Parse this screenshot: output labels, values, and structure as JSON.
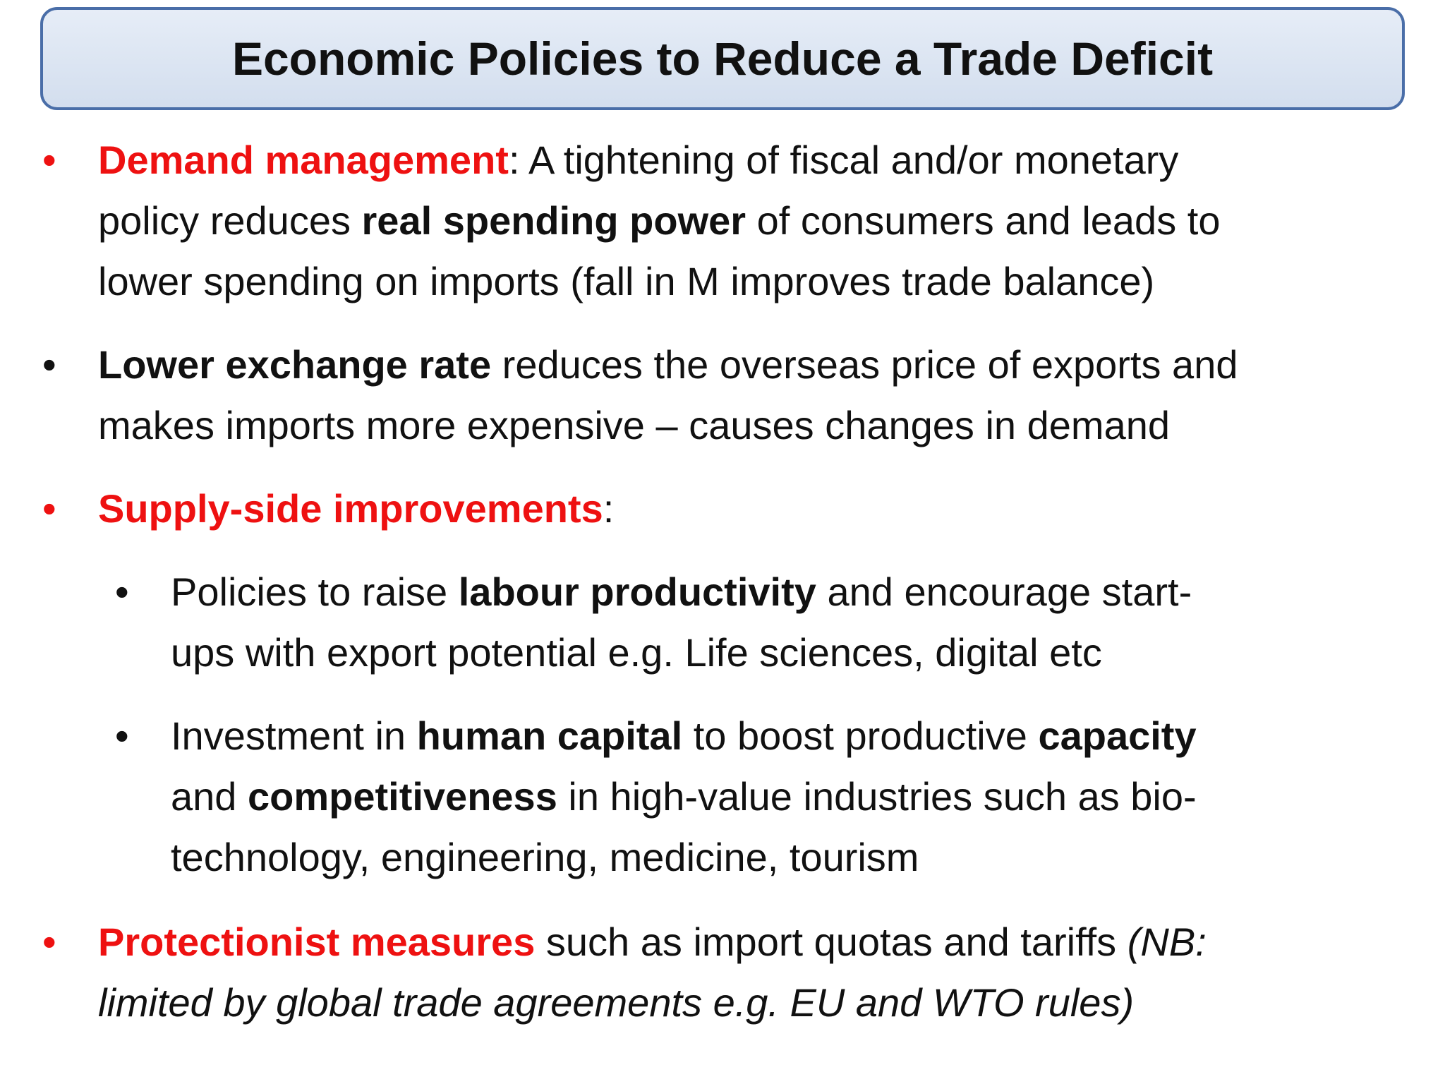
{
  "title": "Economic Policies to Reduce a Trade Deficit",
  "bullet_glyph": "•",
  "colors": {
    "highlight": "#ee1111",
    "title_border": "#4a6ea8",
    "title_fill": "#dbe4f1"
  },
  "b1": {
    "l1_a": "Demand management",
    "l1_b": ":  A tightening of fiscal and/or monetary",
    "l2_a": "policy reduces ",
    "l2_b": "real spending power",
    "l2_c": " of consumers and leads to",
    "l3": "lower spending on imports (fall in M improves trade balance)"
  },
  "b2": {
    "l1_a": "Lower exchange rate",
    "l1_b": " reduces the overseas price of exports and",
    "l2": "makes imports more expensive – causes changes in demand"
  },
  "b3": {
    "l1_a": "Supply-side improvements",
    "l1_b": ":"
  },
  "b3a": {
    "l1_a": "Policies to raise ",
    "l1_b": "labour productivity",
    "l1_c": " and encourage start-",
    "l2": "ups with export potential e.g. Life sciences, digital etc"
  },
  "b3b": {
    "l1_a": "Investment in ",
    "l1_b": "human capital",
    "l1_c": " to boost productive ",
    "l1_d": "capacity",
    "l2_a": "and ",
    "l2_b": "competitiveness",
    "l2_c": " in high-value industries such as bio-",
    "l3": "technology, engineering, medicine, tourism"
  },
  "b4": {
    "l1_a": "Protectionist measures",
    "l1_b": " such as import quotas and tariffs ",
    "l1_c": "(NB:",
    "l2": "limited by global trade agreements e.g. EU and WTO rules)"
  }
}
